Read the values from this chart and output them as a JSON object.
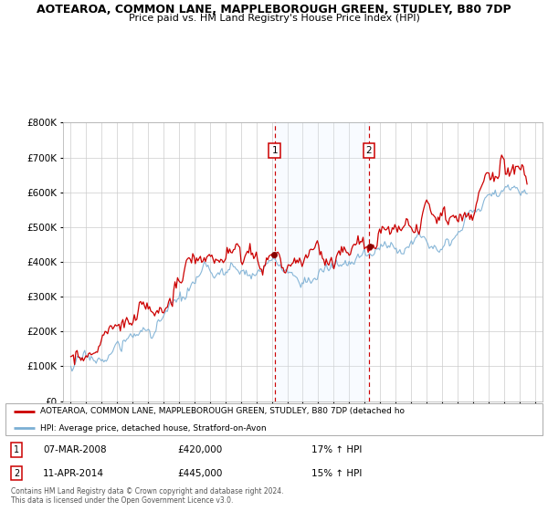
{
  "title1": "AOTEAROA, COMMON LANE, MAPPLEBOROUGH GREEN, STUDLEY, B80 7DP",
  "title2": "Price paid vs. HM Land Registry's House Price Index (HPI)",
  "legend_line1": "AOTEAROA, COMMON LANE, MAPPLEBOROUGH GREEN, STUDLEY, B80 7DP (detached ho",
  "legend_line2": "HPI: Average price, detached house, Stratford-on-Avon",
  "sale1_date": "07-MAR-2008",
  "sale1_price": "£420,000",
  "sale1_hpi": "17% ↑ HPI",
  "sale2_date": "11-APR-2014",
  "sale2_price": "£445,000",
  "sale2_hpi": "15% ↑ HPI",
  "footer": "Contains HM Land Registry data © Crown copyright and database right 2024.\nThis data is licensed under the Open Government Licence v3.0.",
  "sale1_x": 2008.18,
  "sale2_x": 2014.27,
  "property_color": "#cc0000",
  "hpi_color": "#7bafd4",
  "vline_color": "#cc0000",
  "shade_color": "#ddeeff",
  "background_color": "#ffffff",
  "grid_color": "#cccccc",
  "ylim_max": 800000,
  "xlim_start": 1994.5,
  "xlim_end": 2025.5,
  "n_points": 360,
  "seed": 17
}
